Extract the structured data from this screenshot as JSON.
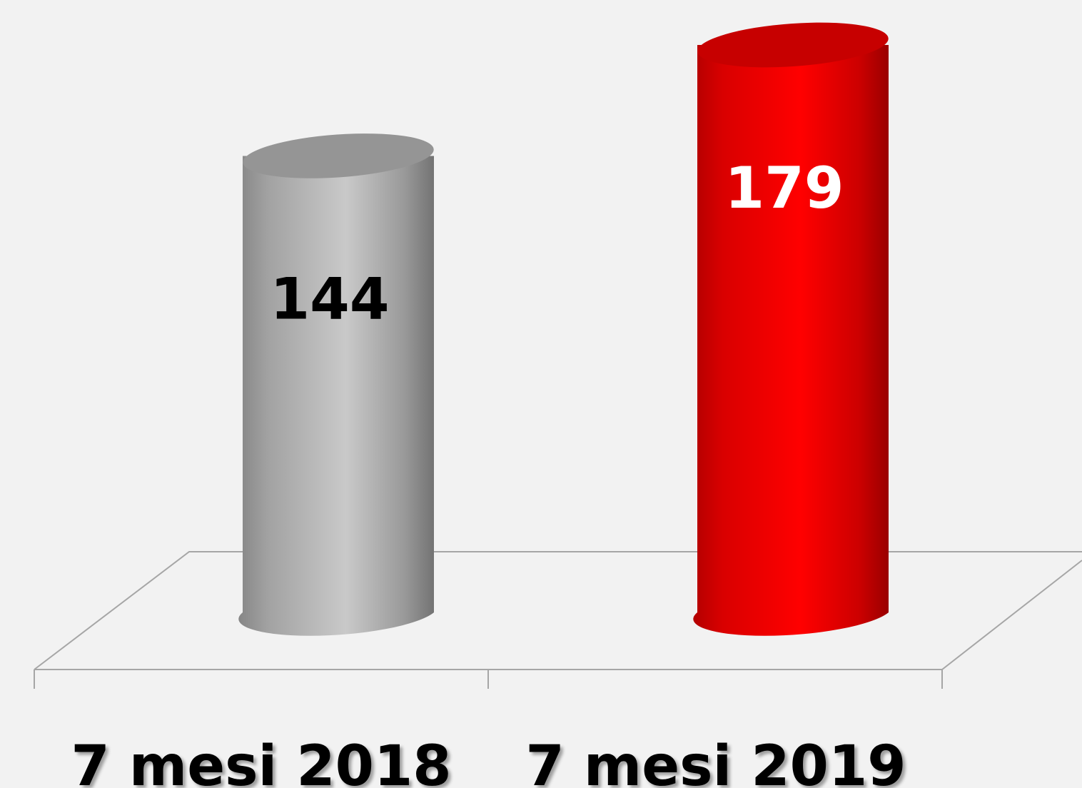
{
  "chart_data": {
    "type": "cylinder",
    "categories": [
      "7 mesi 2018",
      "7 mesi 2019"
    ],
    "values": [
      144,
      179
    ],
    "colors": [
      "#bfbfbf",
      "#ff0000"
    ],
    "label_colors": [
      "#000000",
      "#ffffff"
    ]
  }
}
